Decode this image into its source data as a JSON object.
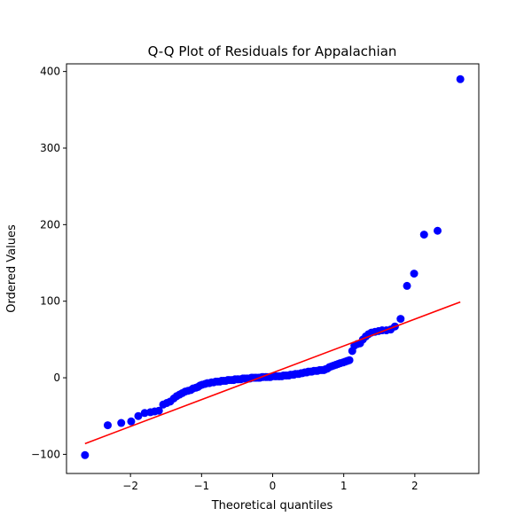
{
  "chart_data": {
    "type": "scatter",
    "title": "Q-Q Plot of Residuals for Appalachian",
    "xlabel": "Theoretical quantiles",
    "ylabel": "Ordered Values",
    "xlim": [
      -2.9,
      2.9
    ],
    "ylim": [
      -125,
      410
    ],
    "xticks": [
      -2,
      -1,
      0,
      1,
      2
    ],
    "yticks": [
      -100,
      0,
      100,
      200,
      300,
      400
    ],
    "xtick_labels": [
      "−2",
      "−1",
      "0",
      "1",
      "2"
    ],
    "ytick_labels": [
      "−100",
      "0",
      "100",
      "200",
      "300",
      "400"
    ],
    "grid": false,
    "colors": {
      "points": "#0000ff",
      "fit_line": "#ff0000"
    },
    "series": [
      {
        "kind": "points",
        "x": [
          -2.64,
          -2.32,
          -2.13,
          -1.99,
          -1.89,
          -1.8,
          -1.72,
          -1.66,
          -1.6,
          -1.54,
          -1.49,
          -1.44,
          -1.39,
          -1.35,
          -1.31,
          -1.27,
          -1.23,
          -1.19,
          -1.15,
          -1.12,
          -1.08,
          -1.05,
          -1.02,
          -0.99,
          -0.95,
          -0.92,
          -0.89,
          -0.86,
          -0.83,
          -0.8,
          -0.77,
          -0.74,
          -0.72,
          -0.69,
          -0.66,
          -0.63,
          -0.61,
          -0.58,
          -0.55,
          -0.53,
          -0.5,
          -0.48,
          -0.45,
          -0.42,
          -0.4,
          -0.37,
          -0.35,
          -0.32,
          -0.3,
          -0.28,
          -0.25,
          -0.23,
          -0.2,
          -0.18,
          -0.15,
          -0.13,
          -0.1,
          -0.08,
          -0.05,
          -0.03,
          0.0,
          0.03,
          0.05,
          0.08,
          0.1,
          0.13,
          0.15,
          0.18,
          0.2,
          0.23,
          0.25,
          0.28,
          0.3,
          0.32,
          0.35,
          0.37,
          0.4,
          0.42,
          0.45,
          0.48,
          0.5,
          0.53,
          0.55,
          0.58,
          0.61,
          0.63,
          0.66,
          0.69,
          0.72,
          0.74,
          0.77,
          0.8,
          0.83,
          0.86,
          0.89,
          0.92,
          0.95,
          0.99,
          1.02,
          1.05,
          1.08,
          1.12,
          1.15,
          1.19,
          1.23,
          1.27,
          1.31,
          1.35,
          1.39,
          1.44,
          1.49,
          1.54,
          1.6,
          1.66,
          1.72,
          1.8,
          1.89,
          1.99,
          2.13,
          2.32,
          2.64
        ],
        "y": [
          -101,
          -62,
          -59,
          -57,
          -50,
          -46,
          -45,
          -44,
          -43,
          -35,
          -33,
          -31,
          -27,
          -24,
          -22,
          -20,
          -18,
          -17,
          -16,
          -14,
          -13,
          -12,
          -10,
          -9,
          -8,
          -7,
          -7,
          -6,
          -6,
          -5,
          -5,
          -5,
          -4,
          -4,
          -4,
          -3,
          -3,
          -3,
          -3,
          -2,
          -2,
          -2,
          -2,
          -1,
          -1,
          -1,
          -1,
          -1,
          0,
          0,
          0,
          0,
          0,
          0,
          1,
          1,
          1,
          1,
          1,
          1,
          2,
          2,
          2,
          2,
          2,
          2,
          3,
          3,
          3,
          3,
          4,
          4,
          4,
          5,
          5,
          5,
          6,
          6,
          7,
          7,
          8,
          8,
          8,
          9,
          9,
          9,
          10,
          10,
          10,
          11,
          12,
          14,
          15,
          16,
          17,
          18,
          19,
          20,
          21,
          22,
          23,
          35,
          42,
          44,
          45,
          50,
          54,
          57,
          59,
          60,
          61,
          62,
          62,
          63,
          67,
          77,
          120,
          136,
          187,
          192,
          390
        ]
      },
      {
        "kind": "fit_line",
        "x": [
          -2.64,
          2.64
        ],
        "y": [
          -86,
          99
        ]
      }
    ]
  }
}
